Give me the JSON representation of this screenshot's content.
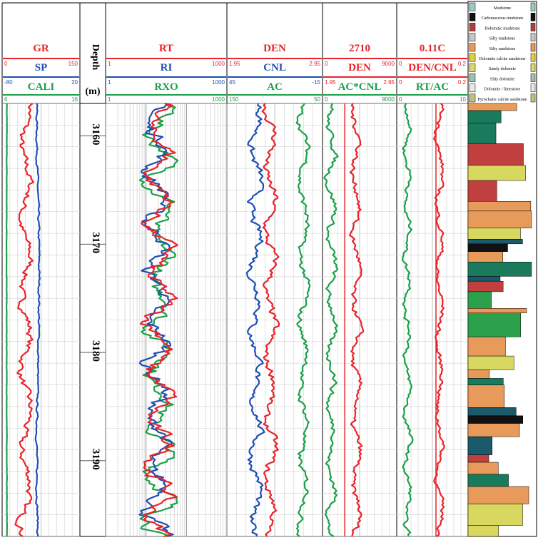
{
  "chart_data": {
    "type": "line",
    "title": "",
    "depth_axis": {
      "label": "Depth",
      "unit": "(m)",
      "range": [
        3157,
        3197
      ],
      "ticks": [
        3160,
        3170,
        3180,
        3190
      ]
    },
    "tracks": [
      {
        "curves": [
          {
            "name": "GR",
            "color": "#e8242a",
            "range": [
              0,
              150
            ],
            "min_label": "0",
            "max_label": "150"
          },
          {
            "name": "SP",
            "color": "#1f4fb3",
            "range": [
              -80,
              20
            ],
            "min_label": "-80",
            "max_label": "20"
          },
          {
            "name": "CALI",
            "color": "#1aa04a",
            "range": [
              6,
              16
            ],
            "min_label": "6",
            "max_label": "16"
          }
        ]
      },
      {
        "curves": [
          {
            "name": "RT",
            "color": "#e8242a",
            "range": [
              1,
              1000
            ],
            "min_label": "1",
            "max_label": "1000"
          },
          {
            "name": "RI",
            "color": "#1f4fb3",
            "range": [
              1,
              1000
            ],
            "min_label": "1",
            "max_label": "1000"
          },
          {
            "name": "RXO",
            "color": "#1aa04a",
            "range": [
              1,
              1000
            ],
            "min_label": "1",
            "max_label": "1000"
          }
        ],
        "scale": "log"
      },
      {
        "curves": [
          {
            "name": "DEN",
            "color": "#e8242a",
            "range": [
              1.95,
              2.95
            ],
            "min_label": "1.95",
            "max_label": "2.95"
          },
          {
            "name": "CNL",
            "color": "#1f4fb3",
            "range": [
              45,
              -15
            ],
            "min_label": "45",
            "max_label": "-15"
          },
          {
            "name": "AC",
            "color": "#1aa04a",
            "range": [
              150,
              50
            ],
            "min_label": "150",
            "max_label": "50"
          }
        ]
      },
      {
        "curves": [
          {
            "name": "2710",
            "color": "#e8242a",
            "range": [
              0,
              9000
            ],
            "min_label": "0",
            "max_label": "9000"
          },
          {
            "name": "DEN",
            "color": "#e8242a",
            "range": [
              1.95,
              2.95
            ],
            "min_label": "1.95",
            "max_label": "2.95"
          },
          {
            "name": "AC*CNL",
            "color": "#1aa04a",
            "range": [
              0,
              9000
            ],
            "min_label": "0",
            "max_label": "9000"
          }
        ]
      },
      {
        "curves": [
          {
            "name": "0.11C",
            "color": "#e8242a",
            "range": [
              0,
              0.2
            ],
            "min_label": "0",
            "max_label": "0.2"
          },
          {
            "name": "DEN/CNL",
            "color": "#e8242a",
            "range": [
              0,
              0.2
            ],
            "min_label": "0",
            "max_label": "0.2"
          },
          {
            "name": "RT/AC",
            "color": "#1aa04a",
            "range": [
              0,
              10
            ],
            "min_label": "0",
            "max_label": "10"
          }
        ]
      }
    ],
    "lithology_legend": [
      "Mudstone",
      "Carbonaceous mudstone",
      "Dolomitic mudstone",
      "Silty mudstone",
      "Silty sandstone",
      "Dolomite calcite sandstone",
      "Sandy dolomite",
      "Silty dolomite",
      "Dolomite / limestone",
      "Pyroclastic calcite sandstone"
    ],
    "fill_colors": {
      "den_ac_cnl": "#a9a9a9",
      "den_cnl_rt_ac": "#c9a3d8"
    }
  }
}
